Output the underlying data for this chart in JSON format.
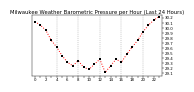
{
  "title": "Milwaukee Weather Barometric Pressure per Hour (Last 24 Hours)",
  "title_fontsize": 3.8,
  "background_color": "#ffffff",
  "grid_color": "#999999",
  "ylim": [
    29.05,
    30.25
  ],
  "ytick_vals": [
    29.1,
    29.2,
    29.3,
    29.4,
    29.5,
    29.6,
    29.7,
    29.8,
    29.9,
    30.0,
    30.1,
    30.2
  ],
  "hours": [
    0,
    1,
    2,
    3,
    4,
    5,
    6,
    7,
    8,
    9,
    10,
    11,
    12,
    13,
    14,
    15,
    16,
    17,
    18,
    19,
    20,
    21,
    22,
    23
  ],
  "pressure": [
    30.12,
    30.05,
    29.95,
    29.75,
    29.62,
    29.45,
    29.32,
    29.25,
    29.35,
    29.22,
    29.18,
    29.28,
    29.38,
    29.12,
    29.25,
    29.38,
    29.32,
    29.48,
    29.62,
    29.75,
    29.92,
    30.05,
    30.15,
    30.22
  ],
  "scatter_color": "#000000",
  "line_color": "#ff0000",
  "vgrid_positions": [
    4,
    8,
    12,
    16,
    20
  ],
  "xlim": [
    -0.5,
    23.5
  ],
  "xtick_fontsize": 2.8,
  "ytick_fontsize": 2.8,
  "scatter_size": 1.2,
  "line_width": 0.7,
  "marker": "s"
}
